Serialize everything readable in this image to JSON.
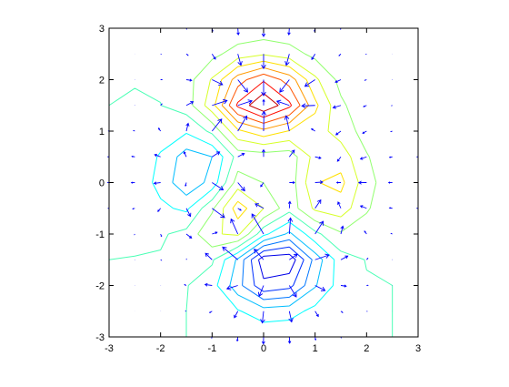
{
  "chart_data": {
    "type": "contour",
    "x": [
      -3,
      -2.5,
      -2,
      -1.5,
      -1,
      -0.5,
      0,
      0.5,
      1,
      1.5,
      2,
      2.5,
      3
    ],
    "y": [
      -3,
      -2.5,
      -2,
      -1.5,
      -1,
      -0.5,
      0,
      0.5,
      1,
      1.5,
      2,
      2.5,
      3
    ],
    "z": [
      [
        0.0,
        0.0,
        0.0,
        0.0,
        -0.03,
        -0.14,
        -0.24,
        -0.22,
        -0.11,
        -0.03,
        -0.01,
        0.0,
        0.0
      ],
      [
        0.0,
        0.0,
        0.02,
        0.0,
        -0.23,
        -0.91,
        -1.57,
        -1.41,
        -0.69,
        -0.18,
        -0.03,
        0.0,
        0.0
      ],
      [
        0.0,
        0.01,
        0.05,
        0.05,
        -0.59,
        -2.63,
        -4.75,
        -4.34,
        -2.1,
        -0.53,
        -0.06,
        0.0,
        0.0
      ],
      [
        0.0,
        0.01,
        0.08,
        0.33,
        0.15,
        -2.19,
        -5.68,
        -5.76,
        -2.63,
        -0.44,
        0.04,
        0.03,
        0.0
      ],
      [
        -0.01,
        -0.06,
        -0.13,
        0.3,
        1.86,
        2.22,
        -0.72,
        -2.22,
        -0.27,
        0.88,
        0.5,
        0.11,
        0.01
      ],
      [
        -0.03,
        -0.2,
        -0.8,
        -1.21,
        0.8,
        3.55,
        2.0,
        0.39,
        2.2,
        2.56,
        1.12,
        0.24,
        0.03
      ],
      [
        -0.04,
        -0.3,
        -1.33,
        -2.77,
        -1.65,
        1.48,
        0.98,
        0.38,
        2.94,
        3.27,
        1.41,
        0.3,
        0.03
      ],
      [
        -0.03,
        -0.25,
        -1.12,
        -2.49,
        -2.0,
        0.39,
        0.46,
        0.38,
        2.38,
        2.56,
        1.09,
        0.23,
        0.03
      ],
      [
        -0.01,
        -0.11,
        -0.48,
        -0.86,
        0.23,
        2.79,
        3.69,
        2.94,
        2.43,
        1.58,
        0.58,
        0.11,
        0.01
      ],
      [
        0.0,
        -0.02,
        -0.01,
        0.48,
        2.61,
        6.2,
        8.0,
        6.25,
        3.25,
        1.19,
        0.29,
        0.05,
        0.0
      ],
      [
        0.0,
        0.01,
        0.08,
        0.55,
        2.1,
        4.55,
        5.86,
        4.56,
        2.21,
        0.68,
        0.13,
        0.02,
        0.0
      ],
      [
        0.0,
        0.0,
        0.03,
        0.19,
        0.69,
        1.47,
        1.88,
        1.47,
        0.7,
        0.21,
        0.04,
        0.0,
        0.0
      ],
      [
        0.0,
        0.0,
        0.01,
        0.03,
        0.11,
        0.23,
        0.3,
        0.23,
        0.11,
        0.03,
        0.01,
        0.0,
        0.0
      ]
    ],
    "levels": [
      -5,
      -4,
      -3,
      -2,
      -1,
      0,
      1,
      2,
      3,
      4,
      5,
      6,
      7
    ],
    "colors": [
      "#0000e8",
      "#0030ff",
      "#0076ff",
      "#00bdff",
      "#00ffff",
      "#4affb5",
      "#91ff6e",
      "#d7ff29",
      "#ffe000",
      "#ff9a00",
      "#ff5400",
      "#ff0d00",
      "#c60000"
    ],
    "quiver_color": "#0000ff",
    "xlim": [
      -3,
      3
    ],
    "ylim": [
      -3,
      3
    ],
    "xticks": [
      -3,
      -2,
      -1,
      0,
      1,
      2,
      3
    ],
    "yticks": [
      -3,
      -2,
      -1,
      0,
      1,
      2,
      3
    ]
  }
}
